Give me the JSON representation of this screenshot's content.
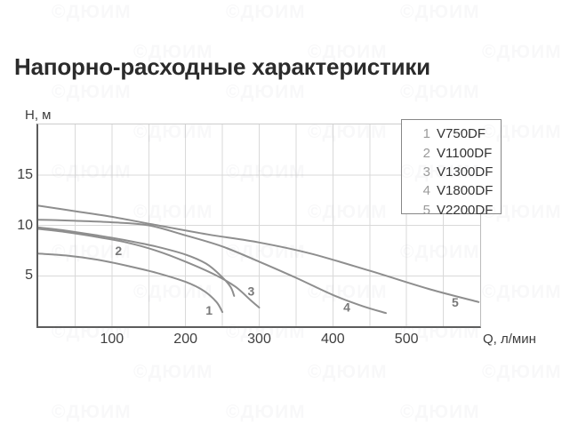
{
  "title": "Напорно-расходные характеристики",
  "watermark_text": "©ДЮИМ",
  "colors": {
    "curve": "#8e8e8e",
    "grid": "#d9d9d9",
    "axis": "#5c5c5c",
    "tick_text": "#3f3f3f",
    "title_text": "#2b2b2b",
    "curve_label": "#787878",
    "legend_border": "#878787",
    "legend_number": "#9a9a9a",
    "legend_name": "#333333"
  },
  "chart_data": {
    "type": "line",
    "title": "Напорно-расходные характеристики",
    "xlabel": "Q, л/мин",
    "ylabel": "Н, м",
    "xlim": [
      0,
      600
    ],
    "ylim": [
      0,
      20
    ],
    "x_ticks": [
      100,
      200,
      300,
      400,
      500
    ],
    "y_ticks": [
      5,
      10,
      15
    ],
    "x_grid_step": 50,
    "grid": true,
    "legend_position": "top-right",
    "series": [
      {
        "num": "1",
        "name": "V750DF",
        "label_q": 232,
        "label_h": 1.6,
        "points": [
          [
            0,
            7.2
          ],
          [
            40,
            7.0
          ],
          [
            80,
            6.6
          ],
          [
            120,
            6.0
          ],
          [
            160,
            5.3
          ],
          [
            200,
            4.4
          ],
          [
            225,
            3.5
          ],
          [
            242,
            2.4
          ],
          [
            250,
            1.4
          ]
        ]
      },
      {
        "num": "2",
        "name": "V1100DF",
        "label_q": 109,
        "label_h": 7.5,
        "points": [
          [
            0,
            9.8
          ],
          [
            40,
            9.45
          ],
          [
            80,
            9.0
          ],
          [
            120,
            8.5
          ],
          [
            160,
            7.9
          ],
          [
            200,
            7.1
          ],
          [
            228,
            6.2
          ],
          [
            248,
            5.0
          ],
          [
            261,
            3.9
          ],
          [
            266,
            3.0
          ]
        ]
      },
      {
        "num": "3",
        "name": "V1300DF",
        "label_q": 289,
        "label_h": 3.5,
        "points": [
          [
            0,
            9.65
          ],
          [
            40,
            9.3
          ],
          [
            80,
            8.85
          ],
          [
            120,
            8.3
          ],
          [
            160,
            7.5
          ],
          [
            200,
            6.4
          ],
          [
            240,
            5.1
          ],
          [
            268,
            3.9
          ],
          [
            288,
            2.6
          ],
          [
            300,
            1.85
          ]
        ]
      },
      {
        "num": "4",
        "name": "V1800DF",
        "label_q": 419,
        "label_h": 1.9,
        "points": [
          [
            0,
            10.55
          ],
          [
            50,
            10.45
          ],
          [
            100,
            10.3
          ],
          [
            150,
            10.0
          ],
          [
            200,
            9.0
          ],
          [
            250,
            7.9
          ],
          [
            300,
            6.4
          ],
          [
            350,
            4.8
          ],
          [
            400,
            3.1
          ],
          [
            440,
            2.0
          ],
          [
            472,
            1.3
          ]
        ]
      },
      {
        "num": "5",
        "name": "V2200DF",
        "label_q": 566,
        "label_h": 2.4,
        "points": [
          [
            0,
            11.95
          ],
          [
            50,
            11.4
          ],
          [
            100,
            10.85
          ],
          [
            155,
            10.1
          ],
          [
            230,
            9.1
          ],
          [
            300,
            8.3
          ],
          [
            370,
            7.2
          ],
          [
            450,
            5.5
          ],
          [
            530,
            3.7
          ],
          [
            598,
            2.4
          ]
        ]
      }
    ]
  }
}
